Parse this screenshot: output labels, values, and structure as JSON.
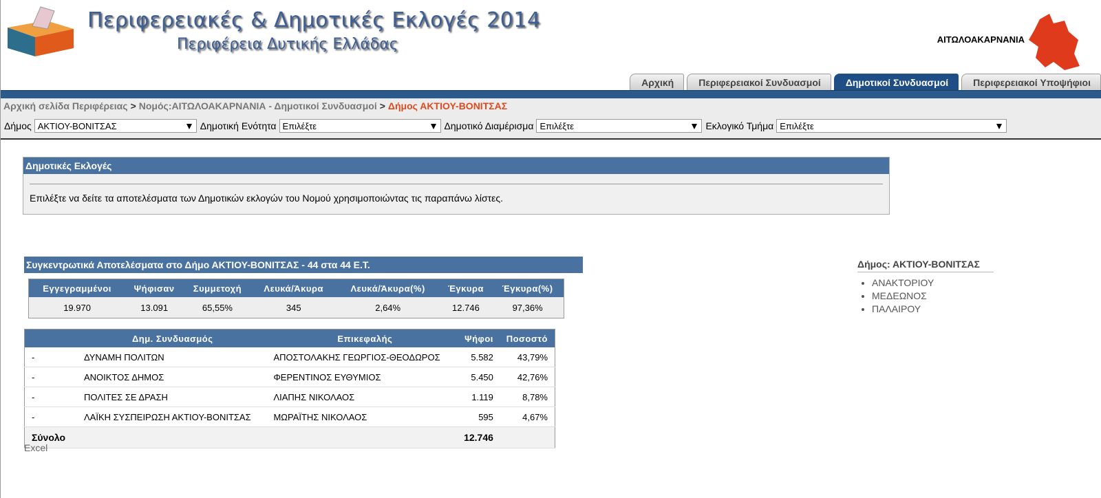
{
  "header": {
    "title": "Περιφερειακές & Δημοτικές Εκλογές 2014",
    "subtitle": "Περιφέρεια Δυτικής Ελλάδας",
    "region": "ΑΙΤΩΛΟΑΚΑΡΝΑΝΙΑ"
  },
  "tabs": [
    "Αρχική",
    "Περιφερειακοί Συνδυασμοί",
    "Δημοτικοί Συνδυασμοί",
    "Περιφερειακοί Υποψήφιοι"
  ],
  "breadcrumb": {
    "separator": ">",
    "items": [
      "Αρχική σελίδα Περιφέρειας",
      "Νομός:ΑΙΤΩΛΟΑΚΑΡΝΑΝΙΑ - Δημοτικοί Συνδυασμοί",
      "Δήμος ΑΚΤΙΟΥ-ΒΟΝΙΤΣΑΣ"
    ]
  },
  "filters": [
    {
      "label": "Δήμος",
      "value": "ΑΚΤΙΟΥ-ΒΟΝΙΤΣΑΣ"
    },
    {
      "label": "Δημοτική Ενότητα",
      "value": "Επιλέξτε"
    },
    {
      "label": "Δημοτικό Διαμέρισμα",
      "value": "Επιλέξτε"
    },
    {
      "label": "Εκλογικό Τμήμα",
      "value": "Επιλέξτε"
    }
  ],
  "notice": {
    "title": "Δημοτικές Εκλογές",
    "text": "Επιλέξτε να δείτε τα αποτελέσματα των Δημοτικών εκλογών του Νομού χρησιμοποιώντας τις παραπάνω λίστες."
  },
  "summary": {
    "title": "Συγκεντρωτικά Αποτελέσματα στο Δήμο ΑΚΤΙΟΥ-ΒΟΝΙΤΣΑΣ - 44 στα 44 Ε.Τ.",
    "headers": [
      "Εγγεγραμμένοι",
      "Ψήφισαν",
      "Συμμετοχή",
      "Λευκά/Άκυρα",
      "Λευκά/Άκυρα(%)",
      "Έγκυρα",
      "Έγκυρα(%)"
    ],
    "values": [
      "19.970",
      "13.091",
      "65,55%",
      "345",
      "2,64%",
      "12.746",
      "97,36%"
    ]
  },
  "results": {
    "headers": [
      "Δημ. Συνδυασμός",
      "Επικεφαλής",
      "Ψήφοι",
      "Ποσοστό"
    ],
    "rows": [
      [
        "-",
        "ΔΥΝΑΜΗ ΠΟΛΙΤΩΝ",
        "ΑΠΟΣΤΟΛΑΚΗΣ ΓΕΩΡΓΙΟΣ-ΘΕΟΔΩΡΟΣ",
        "5.582",
        "43,79%"
      ],
      [
        "-",
        "ΑΝΟΙΚΤΟΣ ΔΗΜΟΣ",
        "ΦΕΡΕΝΤΙΝΟΣ ΕΥΘΥΜΙΟΣ",
        "5.450",
        "42,76%"
      ],
      [
        "-",
        "ΠΟΛΙΤΕΣ ΣΕ ΔΡΑΣΗ",
        "ΛΙΑΠΗΣ ΝΙΚΟΛΑΟΣ",
        "1.119",
        "8,78%"
      ],
      [
        "-",
        "ΛΑΪΚΗ ΣΥΣΠΕΙΡΩΣΗ ΑΚΤΙΟΥ-ΒΟΝΙΤΣΑΣ",
        "ΜΩΡΑΪΤΗΣ ΝΙΚΟΛΑΟΣ",
        "595",
        "4,67%"
      ]
    ],
    "total": {
      "label": "Σύνολο",
      "votes": "12.746"
    }
  },
  "export": "Excel",
  "sidebar": {
    "title": "Δήμος: ΑΚΤΙΟΥ-ΒΟΝΙΤΣΑΣ",
    "items": [
      "ΑΝΑΚΤΟΡΙΟΥ",
      "ΜΕΔΕΩΝΟΣ",
      "ΠΑΛΑΙΡΟΥ"
    ]
  }
}
